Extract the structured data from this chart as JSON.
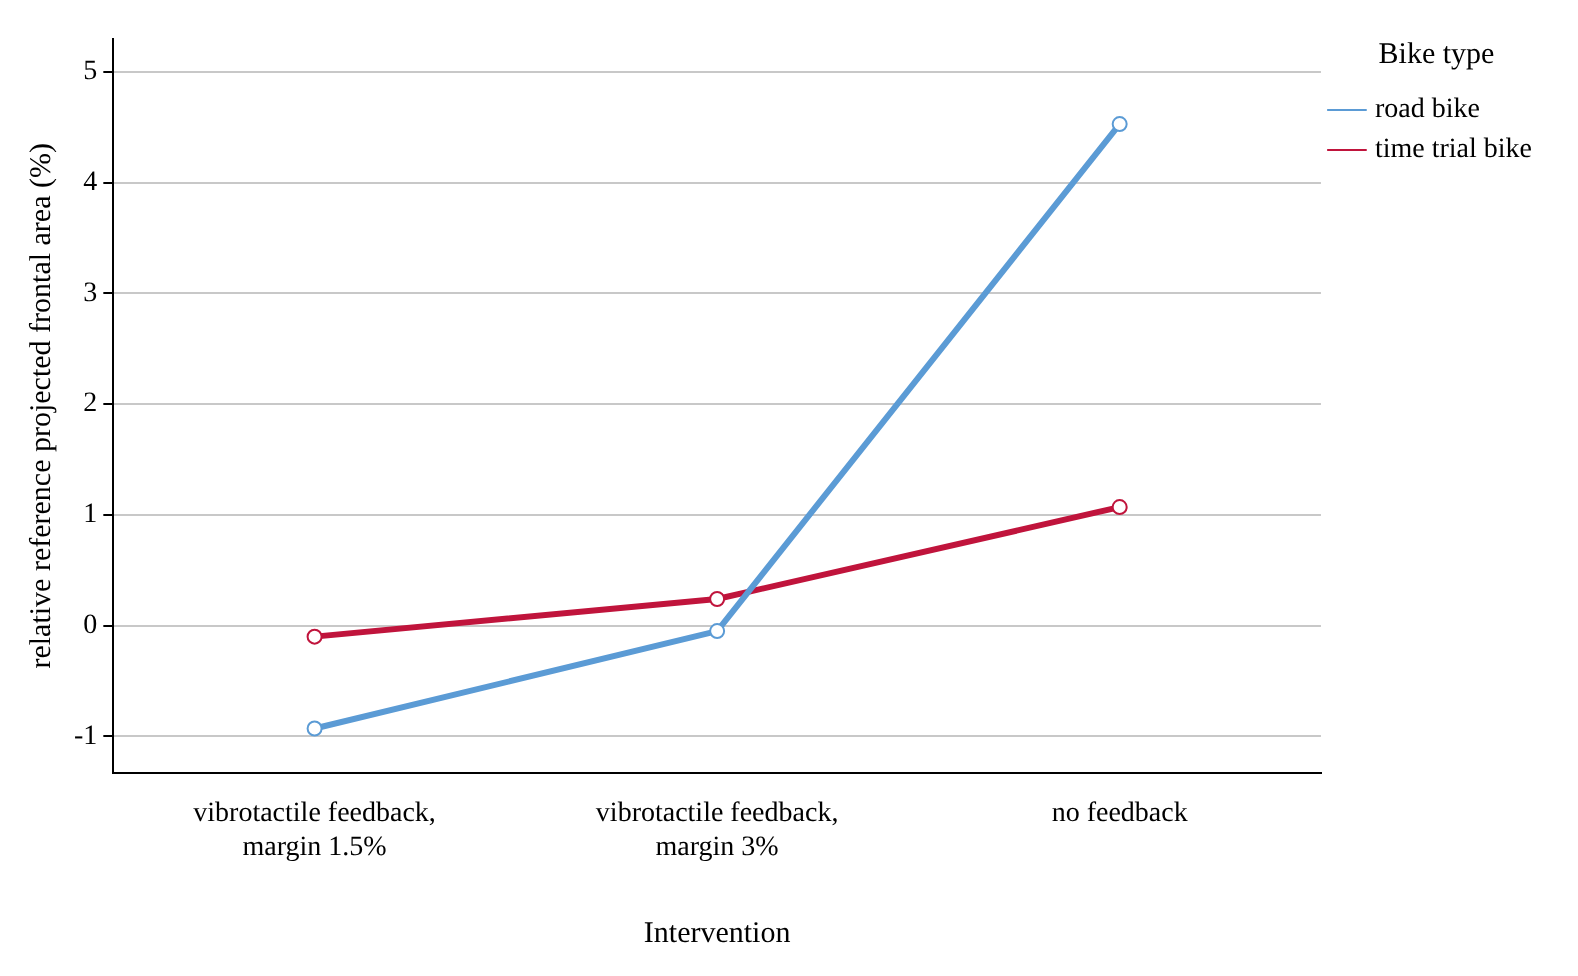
{
  "chart_data": {
    "type": "line",
    "xlabel": "Intervention",
    "ylabel": "relative reference projected frontal area (%)",
    "legend_title": "Bike type",
    "categories": [
      "vibrotactile feedback,\nmargin 1.5%",
      "vibrotactile feedback,\nmargin 3%",
      "no feedback"
    ],
    "series": [
      {
        "name": "road bike",
        "color": "#5b9bd5",
        "values": [
          -0.93,
          -0.05,
          4.53
        ]
      },
      {
        "name": "time trial bike",
        "color": "#c0143c",
        "values": [
          -0.1,
          0.24,
          1.07
        ]
      }
    ],
    "ylim": [
      -1.33,
      5.3
    ],
    "yticks": [
      -1,
      0,
      1,
      2,
      3,
      4,
      5
    ],
    "grid": "y",
    "legend": "right",
    "marker": "circle",
    "line_style": "solid"
  }
}
